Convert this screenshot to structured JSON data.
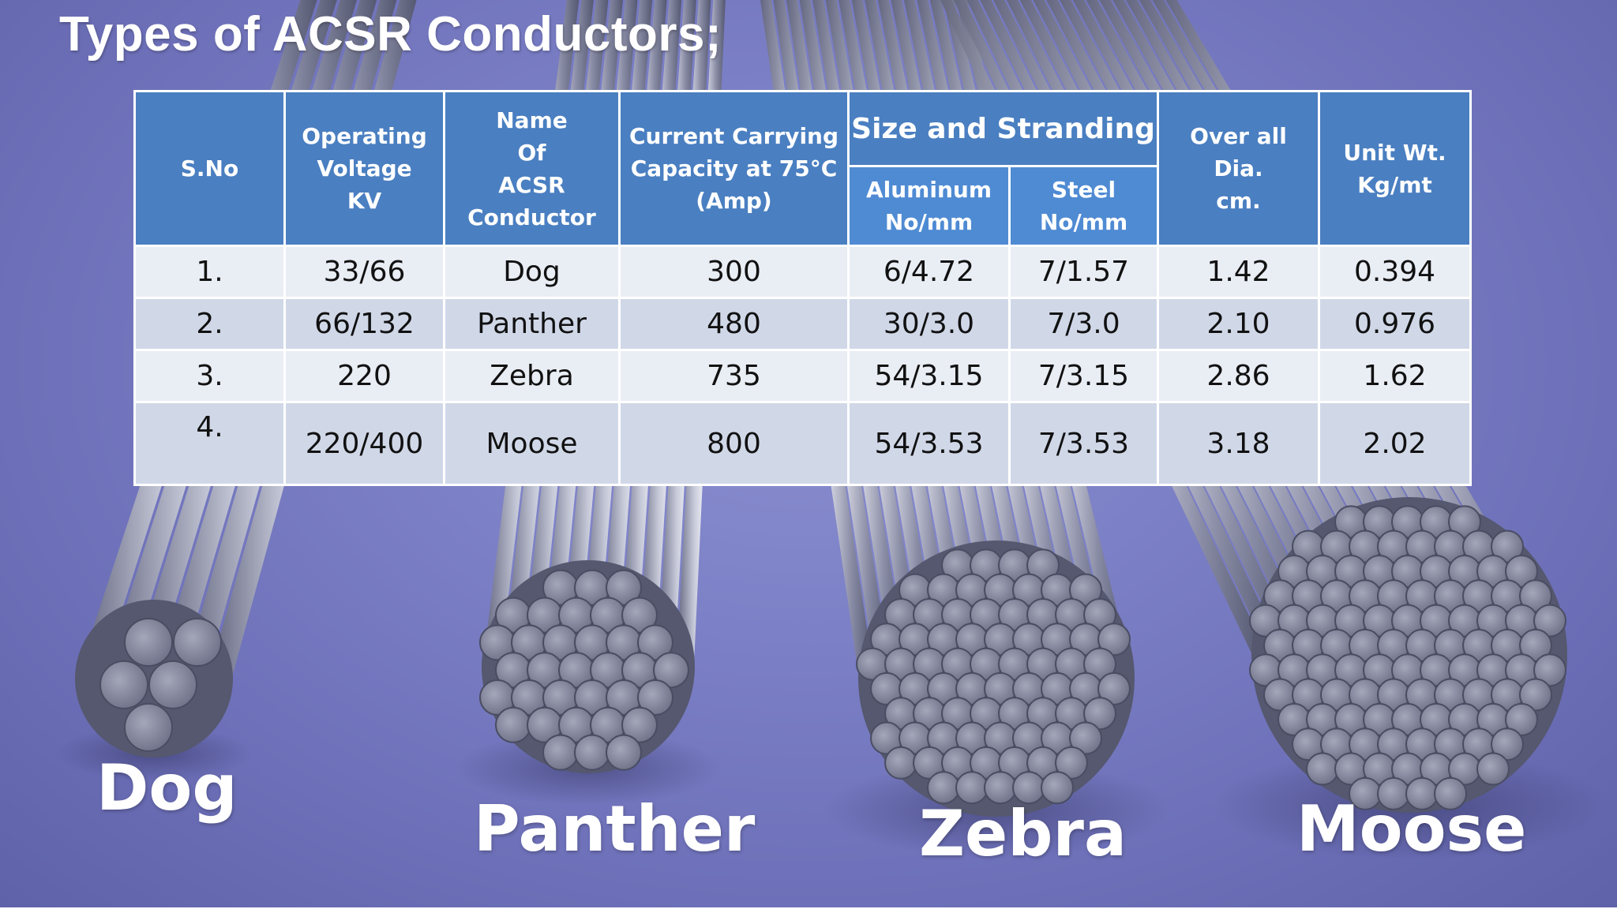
{
  "slide": {
    "title": "Types of ACSR Conductors;"
  },
  "table": {
    "headers": {
      "sno": "S.No",
      "voltage": "Operating\nVoltage\nKV",
      "name": "Name\nOf\nACSR\nConductor",
      "current": "Current Carrying\nCapacity at 75°C\n(Amp)",
      "size_group": "Size and Stranding",
      "aluminum": "Aluminum\nNo/mm",
      "steel": "Steel\nNo/mm",
      "dia": "Over all\nDia.\ncm.",
      "weight": "Unit Wt.\nKg/mt"
    },
    "rows": [
      {
        "sno": "1.",
        "voltage": "33/66",
        "name": "Dog",
        "current": "300",
        "aluminum": "6/4.72",
        "steel": "7/1.57",
        "dia": "1.42",
        "weight": "0.394"
      },
      {
        "sno": "2.",
        "voltage": "66/132",
        "name": "Panther",
        "current": "480",
        "aluminum": "30/3.0",
        "steel": "7/3.0",
        "dia": "2.10",
        "weight": "0.976"
      },
      {
        "sno": "3.",
        "voltage": "220",
        "name": "Zebra",
        "current": "735",
        "aluminum": "54/3.15",
        "steel": "7/3.15",
        "dia": "2.86",
        "weight": "1.62"
      },
      {
        "sno": "4.",
        "voltage": "220/400",
        "name": "Moose",
        "current": "800",
        "aluminum": "54/3.53",
        "steel": "7/3.53",
        "dia": "3.18",
        "weight": "2.02"
      }
    ]
  },
  "labels": {
    "dog": "Dog",
    "panther": "Panther",
    "zebra": "Zebra",
    "moose": "Moose"
  },
  "colors": {
    "background": "#7c80c6",
    "header": "#4a7fc1",
    "row_light": "#e9edf4",
    "row_dark": "#d0d8e8",
    "title_text": "#ffffff"
  }
}
